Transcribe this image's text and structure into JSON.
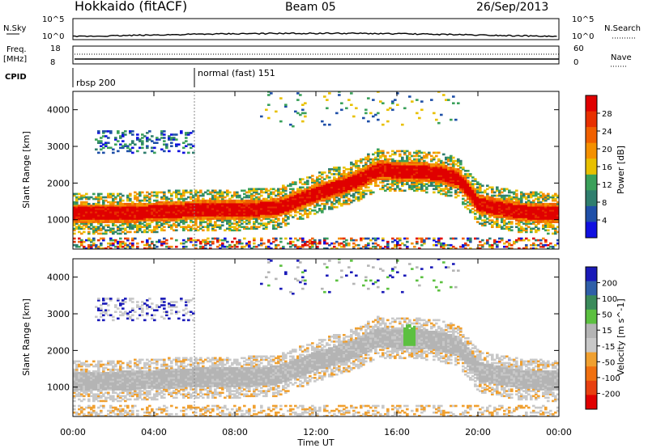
{
  "header": {
    "station": "Hokkaido (fitACF)",
    "beam": "Beam 05",
    "date": "26/Sep/2013"
  },
  "strips": {
    "nsky_label": "N.Sky",
    "nsky_ticks": [
      "10^5",
      "10^0"
    ],
    "nsearch_label": "N.Search",
    "nsearch_ticks": [
      "10^5",
      "10^0"
    ],
    "freq_label_1": "Freq.",
    "freq_label_2": "[MHz]",
    "freq_ticks": [
      "18",
      "8"
    ],
    "nave_label": "Nave",
    "nave_ticks": [
      "60",
      "0"
    ],
    "cpid_label": "CPID",
    "cpid_entries": [
      "rbsp 200",
      "normal (fast) 151"
    ]
  },
  "colors": {
    "power_scale": [
      "#1010e0",
      "#1f4fa8",
      "#2f7e6e",
      "#3aa05a",
      "#e8c000",
      "#f49000",
      "#f06000",
      "#e83000",
      "#e00000"
    ],
    "velocity_scale": [
      "#1a1ab8",
      "#2f5fa8",
      "#3a8a5a",
      "#5cc040",
      "#b4b4b4",
      "#c8c8c8",
      "#f0a030",
      "#f07010",
      "#e84010",
      "#e00000"
    ]
  },
  "chart_data": [
    {
      "type": "heatmap",
      "title": "Power",
      "xlabel": "Time UT",
      "ylabel": "Slant Range [km]",
      "x_ticks": [
        "00:00",
        "04:00",
        "08:00",
        "12:00",
        "16:00",
        "20:00",
        "00:00"
      ],
      "y_ticks": [
        "4000",
        "3000",
        "2000",
        "1000"
      ],
      "ylim": [
        200,
        4500
      ],
      "colorbar_label": "Power [dB]",
      "colorbar_ticks": [
        "28",
        "24",
        "20",
        "16",
        "12",
        "8",
        "4"
      ],
      "band_center_km": [
        [
          0,
          1150
        ],
        [
          2,
          1150
        ],
        [
          4,
          1200
        ],
        [
          6,
          1250
        ],
        [
          8,
          1250
        ],
        [
          10,
          1300
        ],
        [
          12,
          1700
        ],
        [
          14,
          2050
        ],
        [
          15,
          2350
        ],
        [
          16,
          2300
        ],
        [
          17,
          2300
        ],
        [
          18,
          2250
        ],
        [
          19,
          2100
        ],
        [
          20,
          1400
        ],
        [
          22,
          1200
        ],
        [
          24,
          1150
        ]
      ]
    },
    {
      "type": "heatmap",
      "title": "Velocity",
      "xlabel": "Time UT",
      "ylabel": "Slant Range [km]",
      "x_ticks": [
        "00:00",
        "04:00",
        "08:00",
        "12:00",
        "16:00",
        "20:00",
        "00:00"
      ],
      "y_ticks": [
        "4000",
        "3000",
        "2000",
        "1000"
      ],
      "ylim": [
        200,
        4500
      ],
      "colorbar_label": "Velocity [m s^-1]",
      "colorbar_ticks": [
        "200",
        "100",
        "50",
        "15",
        "-15",
        "-50",
        "-100",
        "-200"
      ]
    }
  ]
}
